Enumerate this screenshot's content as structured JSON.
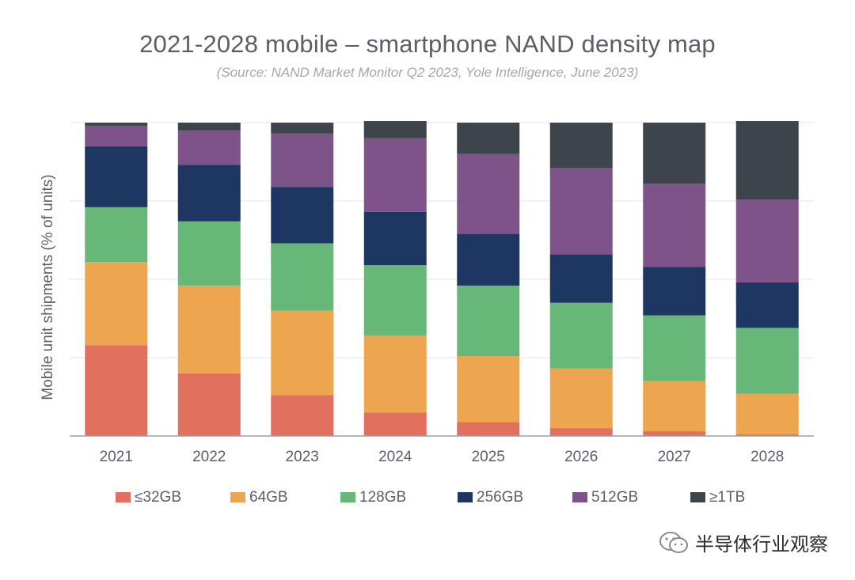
{
  "chart_data": {
    "type": "bar",
    "stacked": true,
    "title": "2021-2028 mobile – smartphone NAND density map",
    "subtitle": "(Source: NAND Market Monitor Q2 2023, Yole Intelligence, June 2023)",
    "ylabel": "Mobile unit shipments (% of units)",
    "xlabel": "",
    "ylim": [
      0,
      100
    ],
    "grid": true,
    "legend_position": "bottom",
    "categories": [
      "2021",
      "2022",
      "2023",
      "2024",
      "2025",
      "2026",
      "2027",
      "2028"
    ],
    "series": [
      {
        "name": "≤32GB",
        "color": "#e2705f",
        "values": [
          29,
          20,
          13,
          7.5,
          4.5,
          2.5,
          1.5,
          0.5
        ]
      },
      {
        "name": "64GB",
        "color": "#eda550",
        "values": [
          26.5,
          28,
          27,
          24.5,
          21,
          19,
          16,
          13
        ]
      },
      {
        "name": "128GB",
        "color": "#67b878",
        "values": [
          17.5,
          20.5,
          21.5,
          22.5,
          22.5,
          21,
          21,
          21
        ]
      },
      {
        "name": "256GB",
        "color": "#1e3662",
        "values": [
          19.5,
          18,
          18,
          17,
          16.5,
          15.5,
          15.5,
          14.5
        ]
      },
      {
        "name": "512GB",
        "color": "#7d538a",
        "values": [
          6.5,
          11,
          17,
          23.5,
          25.5,
          27.5,
          26.5,
          26.5
        ]
      },
      {
        "name": "≥1TB",
        "color": "#3d444b",
        "values": [
          1,
          2.5,
          3.5,
          5.5,
          10,
          14.5,
          19.5,
          25
        ]
      }
    ]
  },
  "watermark": {
    "text": "半导体行业观察",
    "icon": "wechat-icon"
  },
  "colors": {
    "axis": "#9aa0a6",
    "gridline": "#e6e6e6",
    "text": "#5a5f66"
  }
}
